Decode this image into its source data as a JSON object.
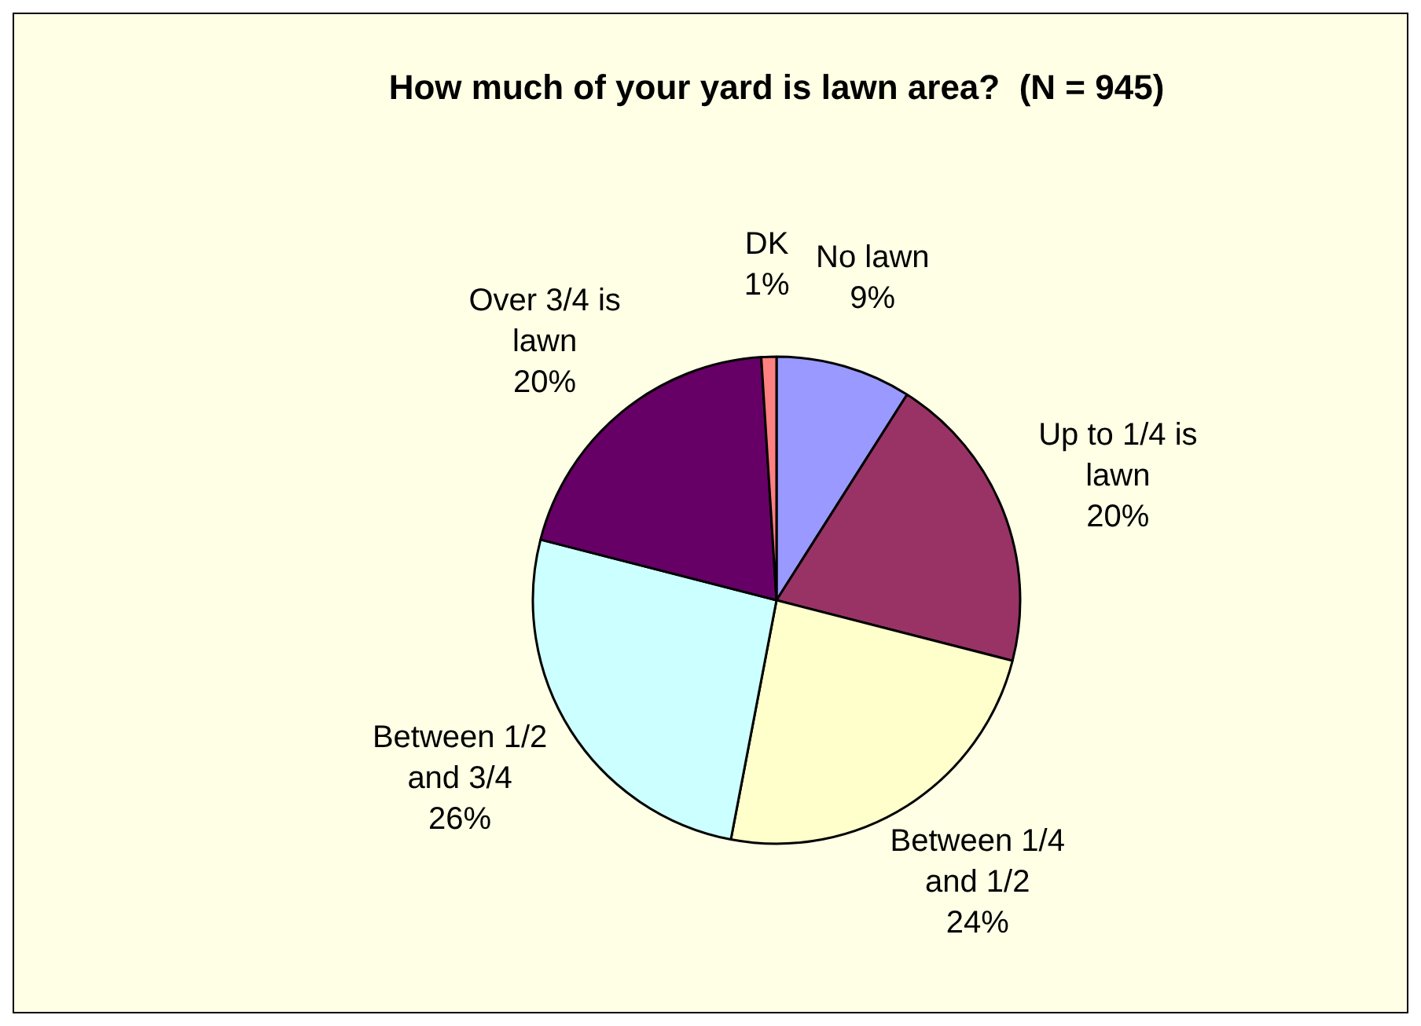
{
  "chart_data": {
    "type": "pie",
    "title": "How much of your yard is lawn area?  (N = 945)",
    "categories": [
      "No lawn",
      "Up to 1/4 is lawn",
      "Between 1/4 and 1/2",
      "Between 1/2 and 3/4",
      "Over 3/4 is lawn",
      "DK"
    ],
    "values": [
      9,
      20,
      24,
      26,
      20,
      1
    ],
    "value_labels": [
      "9%",
      "20%",
      "24%",
      "26%",
      "20%",
      "1%"
    ],
    "colors": [
      "#9999ff",
      "#993366",
      "#ffffcc",
      "#ccffff",
      "#660066",
      "#ff8080"
    ],
    "legend": false
  }
}
